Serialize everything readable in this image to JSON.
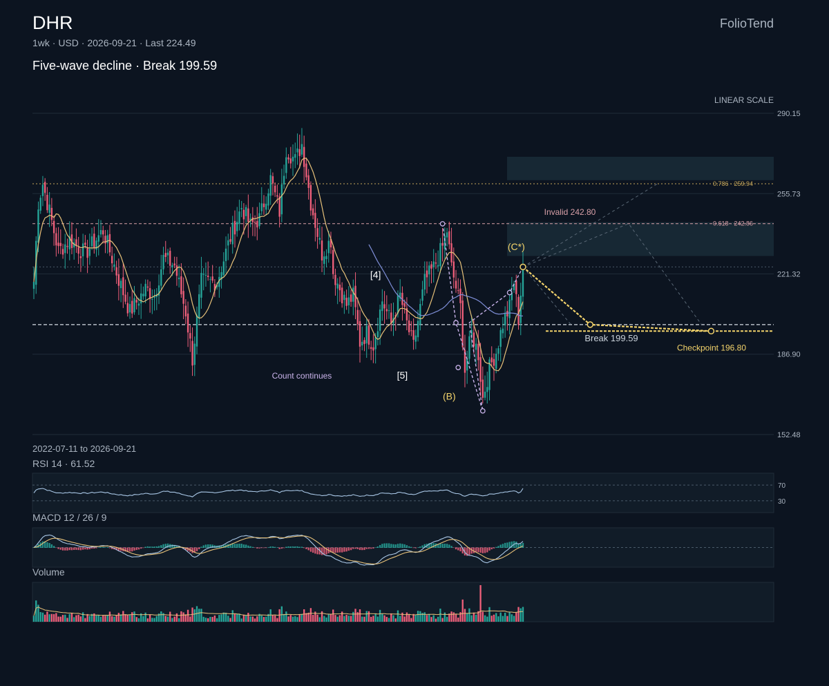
{
  "header": {
    "ticker": "DHR",
    "brand": "FolioTend",
    "meta": "1wk · USD · 2026-09-21 · Last 224.49",
    "subtitle": "Five-wave decline · Break 199.59"
  },
  "colors": {
    "background": "#0c1420",
    "up": "#26a69a",
    "down": "#ef5f7a",
    "ma_short": "#e8c27a",
    "ma_long": "#7f8fd8",
    "projection": "#f3d36b",
    "wave_b": "#c9b3ea",
    "rsi_line": "#a9c7e6",
    "macd_line": "#a9c7e6",
    "signal_line": "#e8c27a"
  },
  "chart_data": {
    "type": "candlestick",
    "scale_label": "LINEAR SCALE",
    "y_ticks": [
      290.15,
      255.73,
      221.32,
      186.9,
      152.48
    ],
    "ylim": [
      152.48,
      290.15
    ],
    "date_range": "2022-07-11 to 2026-09-21",
    "start_date": "2022-07-11",
    "end_date": "2026-09-21",
    "last": 224.49,
    "bar_count": 220,
    "anchors": [
      {
        "i": 0,
        "p": 218
      },
      {
        "i": 2,
        "p": 252
      },
      {
        "i": 4,
        "p": 260
      },
      {
        "i": 7,
        "p": 248
      },
      {
        "i": 11,
        "p": 231
      },
      {
        "i": 16,
        "p": 236
      },
      {
        "i": 23,
        "p": 230
      },
      {
        "i": 31,
        "p": 240
      },
      {
        "i": 38,
        "p": 219
      },
      {
        "i": 43,
        "p": 205
      },
      {
        "i": 50,
        "p": 215
      },
      {
        "i": 54,
        "p": 212
      },
      {
        "i": 58,
        "p": 228
      },
      {
        "i": 63,
        "p": 225
      },
      {
        "i": 68,
        "p": 205
      },
      {
        "i": 71,
        "p": 185
      },
      {
        "i": 75,
        "p": 218
      },
      {
        "i": 82,
        "p": 218
      },
      {
        "i": 88,
        "p": 237
      },
      {
        "i": 93,
        "p": 250
      },
      {
        "i": 97,
        "p": 242
      },
      {
        "i": 101,
        "p": 245
      },
      {
        "i": 106,
        "p": 262
      },
      {
        "i": 110,
        "p": 248
      },
      {
        "i": 113,
        "p": 275
      },
      {
        "i": 117,
        "p": 270
      },
      {
        "i": 120,
        "p": 277
      },
      {
        "i": 124,
        "p": 252
      },
      {
        "i": 129,
        "p": 230
      },
      {
        "i": 133,
        "p": 236
      },
      {
        "i": 134,
        "p": 222
      },
      {
        "i": 140,
        "p": 208
      },
      {
        "i": 143,
        "p": 212
      },
      {
        "i": 146,
        "p": 192
      },
      {
        "i": 149,
        "p": 196
      },
      {
        "i": 152,
        "p": 191
      },
      {
        "i": 156,
        "p": 210
      },
      {
        "i": 160,
        "p": 200
      },
      {
        "i": 164,
        "p": 212
      },
      {
        "i": 167,
        "p": 200
      },
      {
        "i": 170,
        "p": 190
      },
      {
        "i": 175,
        "p": 218
      },
      {
        "i": 179,
        "p": 224
      },
      {
        "i": 183,
        "p": 233
      },
      {
        "i": 185,
        "p": 240
      },
      {
        "i": 187,
        "p": 224
      },
      {
        "i": 191,
        "p": 207
      },
      {
        "i": 193,
        "p": 180
      },
      {
        "i": 196,
        "p": 196
      },
      {
        "i": 199,
        "p": 187
      },
      {
        "i": 201,
        "p": 168
      },
      {
        "i": 204,
        "p": 181
      },
      {
        "i": 207,
        "p": 188
      },
      {
        "i": 210,
        "p": 200
      },
      {
        "i": 213,
        "p": 207
      },
      {
        "i": 215,
        "p": 218
      },
      {
        "i": 217,
        "p": 202
      },
      {
        "i": 219,
        "p": 224.49
      }
    ],
    "levels": {
      "fib_786": {
        "label": "0.786 · 259.94",
        "value": 259.94
      },
      "fib_618": {
        "label": "0.618 · 242.86",
        "value": 242.86
      },
      "invalid": {
        "label": "Invalid 242.80",
        "value": 242.8
      },
      "grey_dotted": 224.3,
      "break": {
        "label": "Break 199.59",
        "value": 199.59
      },
      "checkpoint": {
        "label": "Checkpoint 196.80",
        "value": 196.8
      }
    },
    "zones": [
      {
        "from": 261.5,
        "to": 271.5
      },
      {
        "from": 229.0,
        "to": 243.5
      }
    ],
    "wave_labels": [
      {
        "text": "[4]",
        "i": 153,
        "p": 219.5
      },
      {
        "text": "[5]",
        "i": 165,
        "p": 176.5
      },
      {
        "text": "(B)",
        "i": 186,
        "p": 167.5
      },
      {
        "text": "(C*)",
        "i": 216,
        "p": 231.5
      },
      {
        "text": "Count continues",
        "i": 120,
        "p": 176.5
      }
    ],
    "wave_b_path": [
      {
        "i": 183,
        "p": 242.8
      },
      {
        "i": 189,
        "p": 200.4
      },
      {
        "i": 201,
        "p": 162.6
      },
      {
        "i": 195,
        "p": 200.4
      },
      {
        "i": 213,
        "p": 213.3
      },
      {
        "i": 219,
        "p": 224.3
      }
    ],
    "wave_b_points": [
      {
        "i": 183,
        "p": 242.8
      },
      {
        "i": 189,
        "p": 200.4
      },
      {
        "i": 190,
        "p": 181.2
      },
      {
        "i": 201,
        "p": 162.6
      },
      {
        "i": 213,
        "p": 213.3
      },
      {
        "i": 219,
        "p": 224.3
      }
    ],
    "projection_path": [
      {
        "t": 0,
        "p": 224.3
      },
      {
        "t": 0.35,
        "p": 199.59
      },
      {
        "t": 0.98,
        "p": 196.8
      }
    ],
    "ghost_paths": [
      [
        {
          "t": 0,
          "p": 224.3
        },
        {
          "t": 0.55,
          "p": 242.86
        },
        {
          "t": 0.93,
          "p": 199.59
        }
      ],
      [
        {
          "t": 0,
          "p": 224.3
        },
        {
          "t": 0.7,
          "p": 259.94
        }
      ],
      [
        {
          "t": 0,
          "p": 224.3
        },
        {
          "t": 0.25,
          "p": 199.59
        }
      ]
    ],
    "rsi": {
      "label": "RSI 14 · 61.52",
      "value": 61.52,
      "levels": [
        70,
        30
      ],
      "level_labels": [
        "70",
        "30"
      ]
    },
    "macd": {
      "label": "MACD 12 / 26 / 9"
    },
    "volume": {
      "label": "Volume"
    }
  }
}
